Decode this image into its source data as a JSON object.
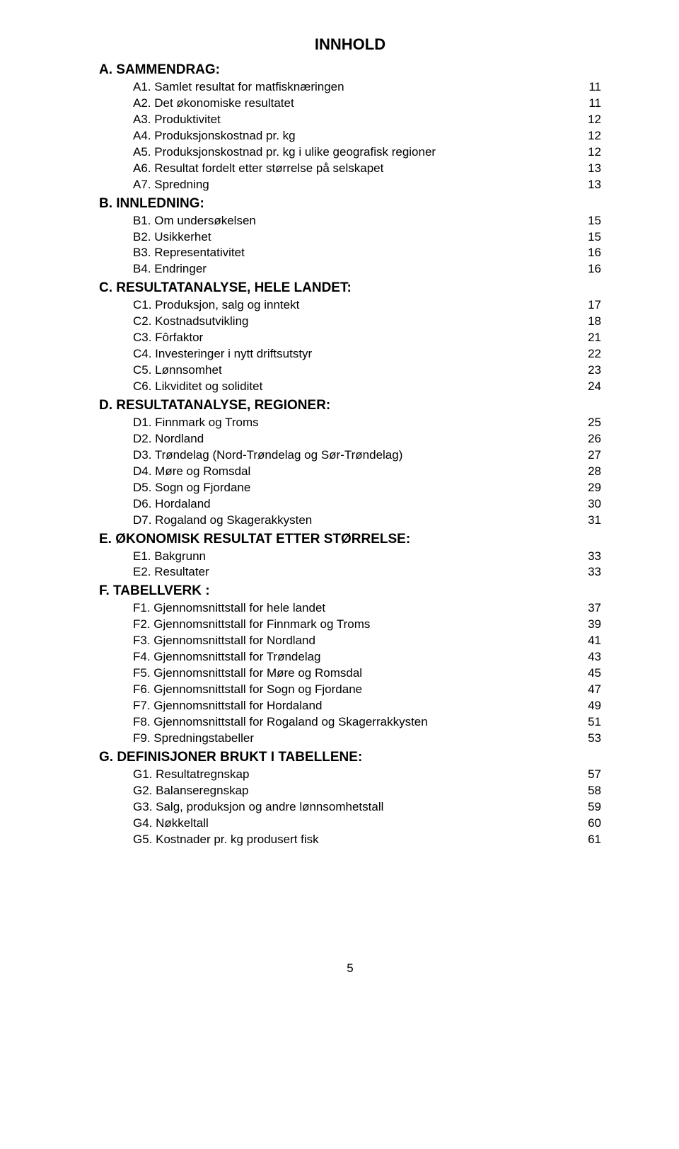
{
  "title": "INNHOLD",
  "sections": [
    {
      "header": "A. SAMMENDRAG:",
      "entries": [
        {
          "label": "A1. Samlet resultat for matfisknæringen",
          "page": "11"
        },
        {
          "label": "A2. Det økonomiske resultatet",
          "page": "11"
        },
        {
          "label": "A3. Produktivitet",
          "page": "12"
        },
        {
          "label": "A4. Produksjonskostnad pr. kg",
          "page": "12"
        },
        {
          "label": "A5. Produksjonskostnad pr. kg i ulike geografisk regioner",
          "page": "12"
        },
        {
          "label": "A6. Resultat fordelt etter størrelse på selskapet",
          "page": "13"
        },
        {
          "label": "A7. Spredning",
          "page": "13"
        }
      ]
    },
    {
      "header": "B. INNLEDNING:",
      "entries": [
        {
          "label": "B1. Om undersøkelsen",
          "page": "15"
        },
        {
          "label": "B2. Usikkerhet",
          "page": "15"
        },
        {
          "label": "B3. Representativitet",
          "page": "16"
        },
        {
          "label": "B4. Endringer",
          "page": "16"
        }
      ]
    },
    {
      "header": "C. RESULTATANALYSE, HELE LANDET:",
      "entries": [
        {
          "label": "C1. Produksjon, salg og inntekt",
          "page": "17"
        },
        {
          "label": "C2. Kostnadsutvikling",
          "page": "18"
        },
        {
          "label": "C3. Fôrfaktor",
          "page": "21"
        },
        {
          "label": "C4. Investeringer i nytt driftsutstyr",
          "page": "22"
        },
        {
          "label": "C5. Lønnsomhet",
          "page": "23"
        },
        {
          "label": "C6. Likviditet og soliditet",
          "page": "24"
        }
      ]
    },
    {
      "header": "D. RESULTATANALYSE, REGIONER:",
      "entries": [
        {
          "label": "D1. Finnmark og Troms",
          "page": "25"
        },
        {
          "label": "D2. Nordland",
          "page": "26"
        },
        {
          "label": "D3. Trøndelag (Nord-Trøndelag og Sør-Trøndelag)",
          "page": "27"
        },
        {
          "label": "D4. Møre og Romsdal",
          "page": "28"
        },
        {
          "label": "D5. Sogn og Fjordane",
          "page": "29"
        },
        {
          "label": "D6. Hordaland",
          "page": "30"
        },
        {
          "label": "D7. Rogaland og Skagerakkysten",
          "page": "31"
        }
      ]
    },
    {
      "header": "E. ØKONOMISK RESULTAT ETTER STØRRELSE:",
      "entries": [
        {
          "label": "E1. Bakgrunn",
          "page": "33"
        },
        {
          "label": "E2. Resultater",
          "page": "33"
        }
      ]
    },
    {
      "header": "F. TABELLVERK :",
      "entries": [
        {
          "label": "F1. Gjennomsnittstall for hele landet",
          "page": "37"
        },
        {
          "label": "F2. Gjennomsnittstall for Finnmark og Troms",
          "page": "39"
        },
        {
          "label": "F3. Gjennomsnittstall for Nordland",
          "page": "41"
        },
        {
          "label": "F4. Gjennomsnittstall for Trøndelag",
          "page": "43"
        },
        {
          "label": "F5. Gjennomsnittstall for Møre og Romsdal",
          "page": "45"
        },
        {
          "label": "F6. Gjennomsnittstall for Sogn og Fjordane",
          "page": "47"
        },
        {
          "label": "F7. Gjennomsnittstall for Hordaland",
          "page": "49"
        },
        {
          "label": "F8. Gjennomsnittstall for Rogaland og Skagerrakkysten",
          "page": "51"
        },
        {
          "label": "F9. Spredningstabeller",
          "page": "53"
        }
      ]
    },
    {
      "header": "G. DEFINISJONER BRUKT I TABELLENE:",
      "entries": [
        {
          "label": "G1. Resultatregnskap",
          "page": "57"
        },
        {
          "label": "G2. Balanseregnskap",
          "page": "58"
        },
        {
          "label": "G3. Salg, produksjon og andre lønnsomhetstall",
          "page": "59"
        },
        {
          "label": "G4. Nøkkeltall",
          "page": "60"
        },
        {
          "label": "G5. Kostnader pr. kg produsert fisk",
          "page": "61"
        }
      ]
    }
  ],
  "footer_page_number": "5"
}
